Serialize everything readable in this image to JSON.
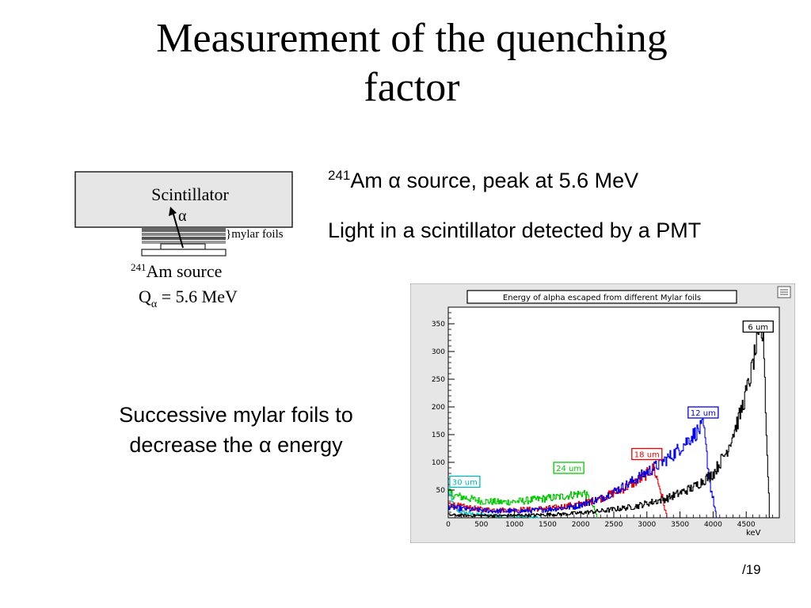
{
  "slide": {
    "title_line1": "Measurement of the quenching",
    "title_line2": "factor",
    "bullet1_sup": "241",
    "bullet1_text": "Am α source, peak at 5.6 MeV",
    "bullet2": "Light in a scintillator detected by a PMT",
    "caption_line1": "Successive mylar foils to",
    "caption_line2": "decrease the α energy",
    "page": "/19"
  },
  "diagram": {
    "scintillator": "Scintillator",
    "alpha": "α",
    "mylar": "}mylar foils",
    "source_sup": "241",
    "source": "Am source",
    "q_label": "Q",
    "q_sub": "α",
    "q_value": " = 5.6 MeV"
  },
  "chart_data": {
    "type": "line",
    "title": "Energy of alpha escaped from different Mylar foils",
    "xlabel": "keV",
    "ylabel": "",
    "xlim": [
      0,
      5000
    ],
    "ylim": [
      0,
      380
    ],
    "x_ticks": [
      "0",
      "500",
      "1000",
      "1500",
      "2000",
      "2500",
      "3000",
      "3500",
      "4000",
      "4500"
    ],
    "y_ticks": [
      "50",
      "100",
      "150",
      "200",
      "250",
      "300",
      "350"
    ],
    "series": [
      {
        "name": "30 um",
        "color": "#00b8b8",
        "x": [
          0,
          50,
          100,
          200,
          400,
          700,
          1000,
          1200,
          1300,
          1400
        ],
        "y": [
          50,
          30,
          15,
          10,
          6,
          4,
          3,
          2,
          1,
          0
        ]
      },
      {
        "name": "24 um",
        "color": "#00cc00",
        "x": [
          0,
          100,
          300,
          500,
          800,
          1100,
          1400,
          1700,
          1900,
          2050,
          2150,
          2250
        ],
        "y": [
          45,
          40,
          35,
          30,
          28,
          30,
          34,
          38,
          42,
          45,
          30,
          0
        ]
      },
      {
        "name": "18 um",
        "color": "#ee0000",
        "x": [
          0,
          200,
          500,
          800,
          1200,
          1600,
          2000,
          2300,
          2600,
          2900,
          3100,
          3200,
          3300
        ],
        "y": [
          25,
          20,
          15,
          14,
          15,
          18,
          25,
          35,
          50,
          70,
          90,
          50,
          0
        ]
      },
      {
        "name": "12 um",
        "color": "#0000ee",
        "x": [
          0,
          300,
          700,
          1100,
          1500,
          1900,
          2300,
          2700,
          3100,
          3400,
          3700,
          3850,
          3950,
          4050
        ],
        "y": [
          20,
          15,
          12,
          12,
          15,
          20,
          35,
          60,
          90,
          115,
          150,
          165,
          60,
          0
        ]
      },
      {
        "name": "6 um",
        "color": "#000000",
        "x": [
          0,
          300,
          800,
          1300,
          1800,
          2300,
          2800,
          3300,
          3700,
          4000,
          4200,
          4400,
          4550,
          4650,
          4720,
          4760,
          4800,
          4850
        ],
        "y": [
          5,
          4,
          4,
          5,
          7,
          12,
          20,
          35,
          55,
          80,
          120,
          185,
          250,
          310,
          335,
          320,
          150,
          0
        ]
      }
    ]
  }
}
